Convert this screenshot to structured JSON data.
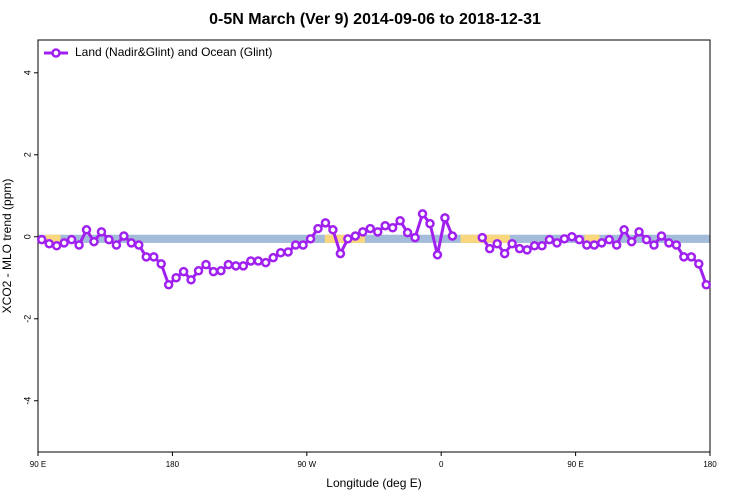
{
  "chart_data": {
    "type": "line",
    "title": "0-5N March (Ver 9)   2014-09-06 to 2018-12-31",
    "xlabel": "Longitude (deg E)",
    "ylabel": "XCO2 - MLO trend (ppm)",
    "x": [
      92.5,
      97.5,
      102.5,
      107.5,
      112.5,
      117.5,
      122.5,
      127.5,
      132.5,
      137.5,
      142.5,
      147.5,
      152.5,
      157.5,
      162.5,
      167.5,
      172.5,
      177.5,
      182.5,
      187.5,
      192.5,
      197.5,
      202.5,
      207.5,
      212.5,
      217.5,
      222.5,
      227.5,
      232.5,
      237.5,
      242.5,
      247.5,
      252.5,
      257.5,
      262.5,
      267.5,
      272.5,
      277.5,
      282.5,
      287.5,
      292.5,
      297.5,
      302.5,
      307.5,
      312.5,
      317.5,
      322.5,
      327.5,
      332.5,
      337.5,
      342.5,
      347.5,
      352.5,
      357.5,
      362.5,
      367.5,
      372.5,
      377.5,
      382.5,
      387.5,
      392.5,
      397.5,
      402.5,
      407.5,
      412.5,
      417.5,
      422.5,
      427.5,
      432.5,
      437.5,
      442.5,
      447.5,
      452.5,
      457.5,
      462.5,
      467.5,
      472.5,
      477.5,
      482.5,
      487.5,
      492.5,
      497.5,
      502.5,
      507.5,
      512.5,
      517.5,
      522.5,
      527.5,
      532.5,
      537.5
    ],
    "series": [
      {
        "name": "Land (Nadir&Glint) and Ocean (Glint)",
        "color": "#a020f0",
        "values": [
          -0.07,
          -0.17,
          -0.22,
          -0.15,
          -0.07,
          -0.2,
          0.17,
          -0.12,
          0.12,
          -0.07,
          -0.2,
          0.02,
          -0.15,
          -0.2,
          -0.49,
          -0.49,
          -0.66,
          -1.17,
          -1.0,
          -0.85,
          -1.05,
          -0.83,
          -0.68,
          -0.85,
          -0.83,
          -0.68,
          -0.71,
          -0.71,
          -0.59,
          -0.59,
          -0.63,
          -0.51,
          -0.39,
          -0.37,
          -0.2,
          -0.2,
          -0.05,
          0.2,
          0.34,
          0.17,
          -0.41,
          -0.05,
          0.02,
          0.12,
          0.2,
          0.12,
          0.27,
          0.22,
          0.39,
          0.1,
          -0.02,
          0.56,
          0.32,
          -0.44,
          0.46,
          0.02,
          null,
          null,
          null,
          -0.02,
          -0.29,
          -0.17,
          -0.41,
          -0.17,
          -0.29,
          -0.32,
          -0.22,
          -0.22,
          -0.07,
          -0.15,
          -0.05,
          0,
          -0.07,
          -0.2,
          -0.2,
          -0.15,
          -0.07,
          -0.2,
          0.17,
          -0.12,
          0.12,
          -0.07,
          -0.2,
          0.02,
          -0.15,
          -0.2,
          -0.49,
          -0.49,
          -0.66,
          -1.17
        ]
      }
    ],
    "band": {
      "ymin": -0.15,
      "ymax": 0.05,
      "color": "#a3bcd9"
    },
    "highlights": {
      "color": "#f9d77e",
      "ranges": [
        [
          95,
          105
        ],
        [
          282,
          309
        ],
        [
          373,
          406
        ],
        [
          456,
          466
        ]
      ]
    },
    "xlim": [
      90,
      540
    ],
    "xticks": [
      {
        "value": 90,
        "label": "90 E"
      },
      {
        "value": 180,
        "label": "180"
      },
      {
        "value": 270,
        "label": "90 W"
      },
      {
        "value": 360,
        "label": "0"
      },
      {
        "value": 450,
        "label": "90 E"
      },
      {
        "value": 540,
        "label": "180"
      }
    ],
    "ylim": [
      -5.25,
      4.8
    ],
    "yticks": [
      4,
      2,
      0,
      -2,
      -4
    ],
    "legend": "top-left"
  }
}
